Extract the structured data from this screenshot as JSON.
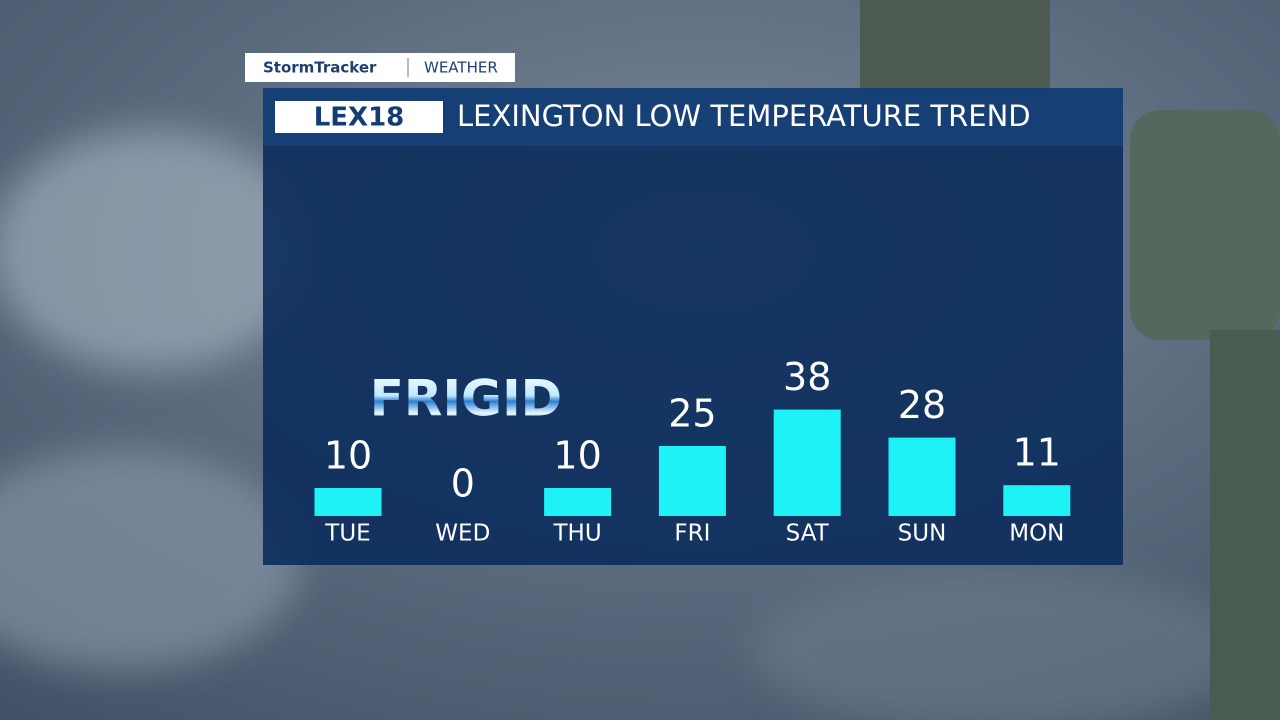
{
  "header": {
    "brand": "StormTracker",
    "section": "WEATHER",
    "logo": "LEX18"
  },
  "chart_data": {
    "type": "bar",
    "title": "LEXINGTON LOW TEMPERATURE TREND",
    "annotation": "FRIGID",
    "categories": [
      "TUE",
      "WED",
      "THU",
      "FRI",
      "SAT",
      "SUN",
      "MON"
    ],
    "values": [
      10,
      0,
      10,
      25,
      38,
      28,
      11
    ],
    "color": "#1ef2f7"
  }
}
